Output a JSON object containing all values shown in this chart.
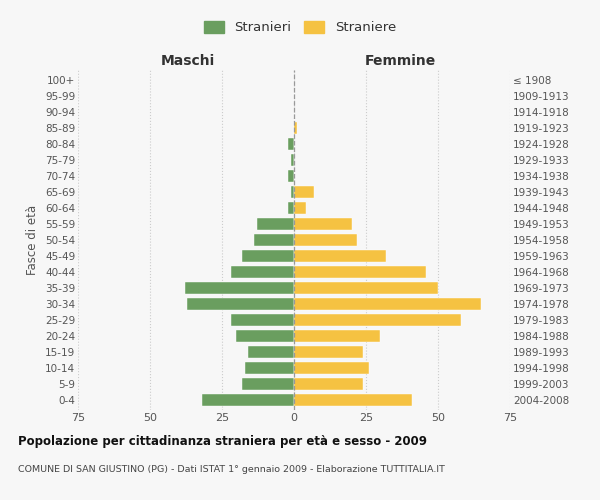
{
  "age_groups": [
    "0-4",
    "5-9",
    "10-14",
    "15-19",
    "20-24",
    "25-29",
    "30-34",
    "35-39",
    "40-44",
    "45-49",
    "50-54",
    "55-59",
    "60-64",
    "65-69",
    "70-74",
    "75-79",
    "80-84",
    "85-89",
    "90-94",
    "95-99",
    "100+"
  ],
  "birth_years": [
    "2004-2008",
    "1999-2003",
    "1994-1998",
    "1989-1993",
    "1984-1988",
    "1979-1983",
    "1974-1978",
    "1969-1973",
    "1964-1968",
    "1959-1963",
    "1954-1958",
    "1949-1953",
    "1944-1948",
    "1939-1943",
    "1934-1938",
    "1929-1933",
    "1924-1928",
    "1919-1923",
    "1914-1918",
    "1909-1913",
    "≤ 1908"
  ],
  "maschi": [
    32,
    18,
    17,
    16,
    20,
    22,
    37,
    38,
    22,
    18,
    14,
    13,
    2,
    1,
    2,
    1,
    2,
    0,
    0,
    0,
    0
  ],
  "femmine": [
    41,
    24,
    26,
    24,
    30,
    58,
    65,
    50,
    46,
    32,
    22,
    20,
    4,
    7,
    0,
    0,
    0,
    1,
    0,
    0,
    0
  ],
  "color_maschi": "#6a9e5f",
  "color_femmine": "#f5c242",
  "title": "Popolazione per cittadinanza straniera per età e sesso - 2009",
  "subtitle": "COMUNE DI SAN GIUSTINO (PG) - Dati ISTAT 1° gennaio 2009 - Elaborazione TUTTITALIA.IT",
  "xlabel_left": "Maschi",
  "xlabel_right": "Femmine",
  "ylabel_left": "Fasce di età",
  "legend_maschi": "Stranieri",
  "legend_femmine": "Straniere",
  "xlim": 75,
  "background_color": "#f7f7f7",
  "grid_color": "#cccccc"
}
